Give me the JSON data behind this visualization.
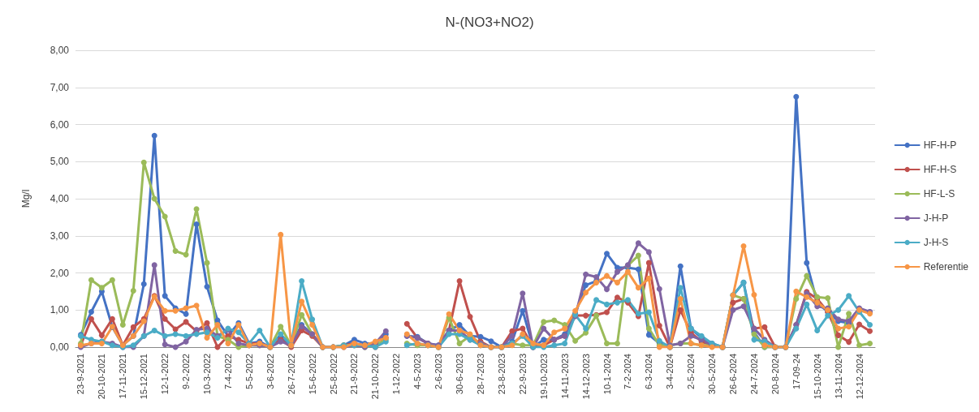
{
  "chart_data": {
    "type": "line",
    "title": "N-(NO3+NO2)",
    "ylabel": "Mg/l",
    "categories": [
      "23-9-2021",
      null,
      "20-10-2021",
      null,
      "17-11-2021",
      null,
      "15-12-2021",
      null,
      "12-1-2022",
      null,
      "9-2-2022",
      null,
      "10-3-2022",
      null,
      "7-4-2022",
      null,
      "5-5-2022",
      null,
      "3-6-2022",
      null,
      "26-7-2022",
      null,
      "15-6-2022",
      null,
      "25-8-2022",
      null,
      "21-9-2022",
      null,
      "21-10-2022",
      null,
      "1-12-2022",
      null,
      "4-5-2023",
      null,
      "2-6-2023",
      null,
      "30-6-2023",
      null,
      "28-7-2023",
      null,
      "23-8-2023",
      null,
      "22-9-2023",
      null,
      "19-10-2023",
      null,
      "14-11-2023",
      null,
      "14-12-2023",
      null,
      "10-1-2024",
      null,
      "7-2-2024",
      null,
      "6-3-2024",
      null,
      "3-4-2024",
      null,
      "2-5-2024",
      null,
      "30-5-2024",
      null,
      "26-6-2024",
      null,
      "24-7-2024",
      null,
      "20-8-2024",
      null,
      "17-09-24",
      null,
      "15-10-2024",
      null,
      "13-11-2024",
      null,
      "12-12-2024",
      null
    ],
    "series": [
      {
        "name": "HF-H-P",
        "color": "#4472c4",
        "values": [
          0.33,
          0.95,
          1.5,
          0.54,
          0.05,
          0.3,
          1.7,
          5.7,
          1.38,
          1.05,
          0.89,
          3.31,
          1.63,
          0.72,
          0.3,
          0.65,
          0.1,
          0.15,
          0,
          0.25,
          0.05,
          0.6,
          0.35,
          0,
          0,
          0.05,
          0.2,
          0.1,
          0.1,
          0.35,
          null,
          0.3,
          0.28,
          0.1,
          0.05,
          0.45,
          0.6,
          0.3,
          0.28,
          0.16,
          0,
          0.15,
          0.98,
          0,
          0.2,
          0.2,
          0.35,
          0.9,
          1.67,
          1.78,
          2.52,
          2.14,
          2.14,
          2.1,
          0.33,
          0.1,
          0,
          2.18,
          0.5,
          0.25,
          0.1,
          0,
          1.4,
          1.74,
          0.4,
          0,
          0,
          0,
          6.75,
          2.27,
          1.2,
          0.95,
          0.7,
          0.65,
          1,
          0.95
        ]
      },
      {
        "name": "HF-H-S",
        "color": "#c0504d",
        "values": [
          0.05,
          0.76,
          0.32,
          0.76,
          0.05,
          0.54,
          0.76,
          1.38,
          0.76,
          0.48,
          0.68,
          0.43,
          0.65,
          0,
          0.3,
          0.2,
          0.1,
          0.1,
          0,
          0.2,
          0,
          0.45,
          0.3,
          0,
          0,
          0.05,
          0.1,
          0.05,
          0,
          0.25,
          null,
          0.63,
          0.25,
          0.1,
          0,
          0.45,
          1.78,
          0.82,
          0.15,
          0,
          0,
          0.43,
          0.5,
          0,
          0.05,
          0.2,
          0.3,
          0.85,
          0.85,
          0.87,
          0.94,
          1.34,
          1.2,
          0.83,
          2.27,
          0.58,
          0,
          1,
          0.39,
          0.15,
          0.05,
          0,
          1.2,
          1.3,
          0.5,
          0.54,
          0,
          0,
          0.6,
          1.49,
          1.3,
          0.95,
          0.32,
          0.14,
          0.61,
          0.43
        ]
      },
      {
        "name": "HF-L-S",
        "color": "#9bbb59",
        "values": [
          0.1,
          1.81,
          1.6,
          1.81,
          0.6,
          1.52,
          4.98,
          4,
          3.52,
          2.59,
          2.49,
          3.72,
          2.27,
          0.3,
          0.2,
          0,
          0.05,
          0.05,
          0,
          0.55,
          0.05,
          0.87,
          0.35,
          0,
          0,
          0.05,
          0.05,
          0,
          0.05,
          0.2,
          null,
          0.1,
          0.05,
          0.05,
          0,
          0.79,
          0.1,
          0.3,
          0.1,
          0,
          0,
          0.1,
          0.05,
          0.05,
          0.68,
          0.72,
          0.6,
          0.17,
          0.39,
          0.85,
          0.1,
          0.1,
          2.2,
          2.47,
          0.5,
          0.05,
          0.05,
          0.1,
          0.1,
          0.05,
          0.05,
          0,
          1.4,
          1.3,
          0.35,
          0,
          0,
          0,
          1.3,
          1.92,
          1.35,
          1.32,
          0,
          0.9,
          0.05,
          0.1
        ]
      },
      {
        "name": "J-H-P",
        "color": "#8064a2",
        "values": [
          0,
          0.1,
          0.15,
          0.1,
          0,
          0,
          0.3,
          2.21,
          0.07,
          0,
          0.15,
          0.47,
          0.5,
          0.3,
          0.47,
          0.1,
          0.05,
          0.05,
          0,
          0.15,
          0.05,
          0.55,
          0.35,
          0,
          0,
          0,
          0.05,
          0,
          0.1,
          0.43,
          null,
          0.3,
          0.25,
          0.1,
          0.05,
          0.45,
          0.45,
          0.2,
          0.1,
          0,
          0,
          0.3,
          1.45,
          0,
          0.5,
          0.2,
          0.3,
          0.83,
          1.96,
          1.89,
          1.56,
          2.03,
          2.21,
          2.8,
          2.56,
          1.57,
          0.05,
          0.1,
          0.3,
          0.2,
          0.05,
          0,
          1,
          1.1,
          0.5,
          0.2,
          0,
          0,
          0.6,
          1.45,
          1.1,
          1.05,
          0.75,
          0.7,
          1.05,
          0.95
        ]
      },
      {
        "name": "J-H-S",
        "color": "#4bacc6",
        "values": [
          0.3,
          0.2,
          0.15,
          0.05,
          0,
          0.05,
          0.3,
          0.45,
          0.3,
          0.35,
          0.3,
          0.35,
          0.4,
          0.25,
          0.5,
          0.4,
          0.1,
          0.45,
          0,
          0.35,
          0.05,
          1.78,
          0.75,
          0,
          0,
          0.05,
          0.05,
          0.05,
          0,
          0.15,
          null,
          0.05,
          0.1,
          0.05,
          0,
          0.35,
          0.35,
          0.2,
          0.05,
          0,
          0,
          0.1,
          0.3,
          0,
          0,
          0.05,
          0.1,
          0.87,
          0.5,
          1.27,
          1.15,
          1.2,
          1.27,
          0.9,
          0.94,
          0.17,
          0,
          1.6,
          0.5,
          0.3,
          0.1,
          0,
          1.4,
          1.74,
          0.2,
          0.15,
          0,
          0,
          0.5,
          1.15,
          0.45,
          0.85,
          1,
          1.38,
          0.95,
          0.6
        ]
      },
      {
        "name": "Referentie",
        "color": "#f79646",
        "values": [
          0.05,
          0.1,
          0.1,
          0.55,
          0.05,
          0.3,
          0.7,
          1.36,
          0.98,
          0.98,
          1.05,
          1.12,
          0.25,
          0.6,
          0.1,
          0.6,
          0.05,
          0.1,
          0,
          3.03,
          0.05,
          1.23,
          0.6,
          0,
          0,
          0,
          0.1,
          0.05,
          0.15,
          0.25,
          null,
          0.35,
          0.1,
          0.05,
          0,
          0.89,
          0.45,
          0.35,
          0.05,
          0,
          0,
          0.05,
          0.35,
          0.1,
          0.05,
          0.4,
          0.5,
          0.98,
          1.47,
          1.74,
          1.92,
          1.74,
          2.03,
          1.6,
          1.85,
          0,
          0,
          1.3,
          0.1,
          0.05,
          0,
          0,
          1.4,
          2.72,
          1.41,
          0.05,
          0,
          0,
          1.5,
          1.35,
          1.2,
          1,
          0.5,
          0.55,
          1,
          0.9
        ]
      }
    ],
    "ylim": [
      0,
      8
    ],
    "yticks": [
      {
        "value": 0,
        "label": "0,00"
      },
      {
        "value": 1,
        "label": "1,00"
      },
      {
        "value": 2,
        "label": "2,00"
      },
      {
        "value": 3,
        "label": "3,00"
      },
      {
        "value": 4,
        "label": "4,00"
      },
      {
        "value": 5,
        "label": "5,00"
      },
      {
        "value": 6,
        "label": "6,00"
      },
      {
        "value": 7,
        "label": "7,00"
      },
      {
        "value": 8,
        "label": "8,00"
      }
    ],
    "grid": "y",
    "legend": "right",
    "marker": "circle",
    "line_style": "solid"
  }
}
